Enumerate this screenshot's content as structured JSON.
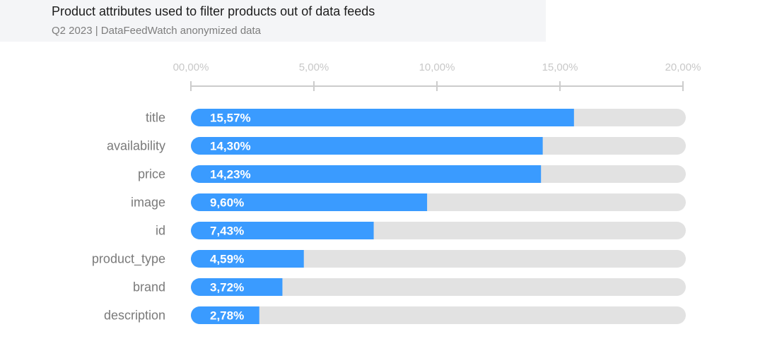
{
  "header": {
    "title": "Product attributes used to filter products out of data feeds",
    "subtitle": "Q2 2023 | DataFeedWatch anonymized data"
  },
  "colors": {
    "bar": "#3a9bff",
    "track": "#e2e2e2",
    "axis": "#cccccc"
  },
  "chart_data": {
    "type": "bar",
    "orientation": "horizontal",
    "title": "Product attributes used to filter products out of data feeds",
    "subtitle": "Q2 2023 | DataFeedWatch anonymized data",
    "xlabel": "",
    "ylabel": "",
    "xlim": [
      0,
      20
    ],
    "x_ticks": [
      0,
      5,
      10,
      15,
      20
    ],
    "x_tick_labels": [
      "00,00%",
      "5,00%",
      "10,00%",
      "15,00%",
      "20,00%"
    ],
    "x_axis_position": "top",
    "grid": false,
    "legend": null,
    "categories": [
      "title",
      "availability",
      "price",
      "image",
      "id",
      "product_type",
      "brand",
      "description"
    ],
    "values": [
      15.57,
      14.3,
      14.23,
      9.6,
      7.43,
      4.59,
      3.72,
      2.78
    ],
    "value_labels": [
      "15,57%",
      "14,30%",
      "14,23%",
      "9,60%",
      "7,43%",
      "4,59%",
      "3,72%",
      "2,78%"
    ],
    "unit": "%"
  }
}
